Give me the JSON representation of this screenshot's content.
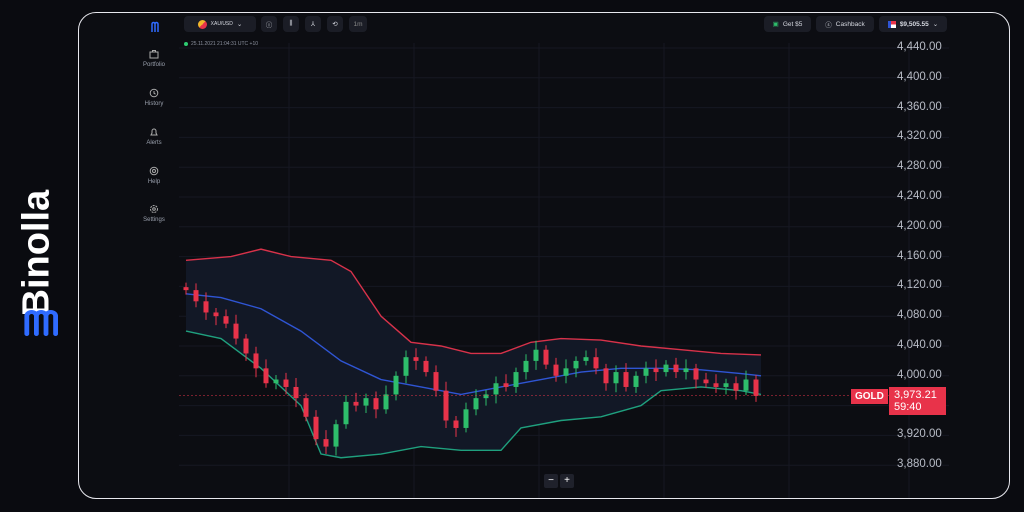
{
  "brand": {
    "name": "Binolla",
    "color": "#2f6bff"
  },
  "header": {
    "asset": "XAU/USD",
    "timeframe": "1m",
    "get_bonus": "Get $5",
    "cashback": "Cashback",
    "balance": "$9,505.55",
    "timestamp": "25.11.2021  21:04:31  UTC +10"
  },
  "sidebar": {
    "items": [
      {
        "label": "Portfolio",
        "icon": "briefcase-icon"
      },
      {
        "label": "History",
        "icon": "history-icon"
      },
      {
        "label": "Alerts",
        "icon": "bell-icon"
      },
      {
        "label": "Help",
        "icon": "help-icon"
      },
      {
        "label": "Settings",
        "icon": "gear-icon"
      }
    ]
  },
  "price_axis": {
    "ticks": [
      "4,440.00",
      "4,400.00",
      "4,360.00",
      "4,320.00",
      "4,280.00",
      "4,240.00",
      "4,200.00",
      "4,160.00",
      "4,120.00",
      "4,080.00",
      "4,040.00",
      "4,000.00",
      "3,920.00",
      "3,880.00"
    ]
  },
  "current": {
    "symbol": "GOLD",
    "price": "3,973.21",
    "countdown": "59:40"
  },
  "zoom": {
    "minus": "−",
    "plus": "+"
  },
  "colors": {
    "up": "#2ebd6b",
    "down": "#e8334a",
    "upper_band": "#d8324a",
    "middle_band": "#2f55d4",
    "lower_band": "#1fa07e"
  },
  "chart_data": {
    "type": "candlestick",
    "ylim": [
      3860,
      4460
    ],
    "closes": [
      4115,
      4100,
      4085,
      4080,
      4070,
      4050,
      4030,
      4010,
      3990,
      3995,
      3985,
      3970,
      3945,
      3915,
      3905,
      3935,
      3965,
      3960,
      3970,
      3955,
      3975,
      4000,
      4025,
      4020,
      4005,
      3980,
      3940,
      3930,
      3955,
      3970,
      3975,
      3990,
      3985,
      4005,
      4020,
      4035,
      4015,
      4000,
      4010,
      4020,
      4025,
      4010,
      3990,
      4005,
      3985,
      4000,
      4010,
      4005,
      4015,
      4005,
      4010,
      3995,
      3990,
      3985,
      3990,
      3980,
      3995,
      3973
    ],
    "upper_band": [
      [
        0,
        4155
      ],
      [
        4.5,
        4160
      ],
      [
        7.5,
        4170
      ],
      [
        10.5,
        4160
      ],
      [
        14.5,
        4155
      ],
      [
        16.5,
        4140
      ],
      [
        19.5,
        4080
      ],
      [
        22.5,
        4045
      ],
      [
        25.5,
        4040
      ],
      [
        28.5,
        4030
      ],
      [
        31.5,
        4030
      ],
      [
        34.5,
        4045
      ],
      [
        37.5,
        4050
      ],
      [
        41.5,
        4048
      ],
      [
        45.5,
        4040
      ],
      [
        49.5,
        4035
      ],
      [
        53.5,
        4030
      ],
      [
        57.5,
        4028
      ]
    ],
    "middle_band": [
      [
        0,
        4110
      ],
      [
        3.5,
        4105
      ],
      [
        7.5,
        4090
      ],
      [
        11.5,
        4060
      ],
      [
        15.5,
        4020
      ],
      [
        19.5,
        3995
      ],
      [
        23.5,
        3985
      ],
      [
        27.5,
        3975
      ],
      [
        31.5,
        3985
      ],
      [
        35.5,
        3995
      ],
      [
        39.5,
        4005
      ],
      [
        43.5,
        4010
      ],
      [
        47.5,
        4010
      ],
      [
        51.5,
        4008
      ],
      [
        55.5,
        4003
      ],
      [
        57.5,
        4000
      ]
    ],
    "lower_band": [
      [
        0,
        4060
      ],
      [
        3.5,
        4050
      ],
      [
        7.5,
        4010
      ],
      [
        11.5,
        3960
      ],
      [
        13.5,
        3895
      ],
      [
        15.5,
        3890
      ],
      [
        19.5,
        3895
      ],
      [
        23.5,
        3905
      ],
      [
        27.5,
        3900
      ],
      [
        31.5,
        3900
      ],
      [
        33.5,
        3930
      ],
      [
        37.5,
        3940
      ],
      [
        41.5,
        3945
      ],
      [
        45.5,
        3960
      ],
      [
        47.5,
        3980
      ],
      [
        51.5,
        3985
      ],
      [
        55.5,
        3980
      ],
      [
        57.5,
        3975
      ]
    ]
  }
}
